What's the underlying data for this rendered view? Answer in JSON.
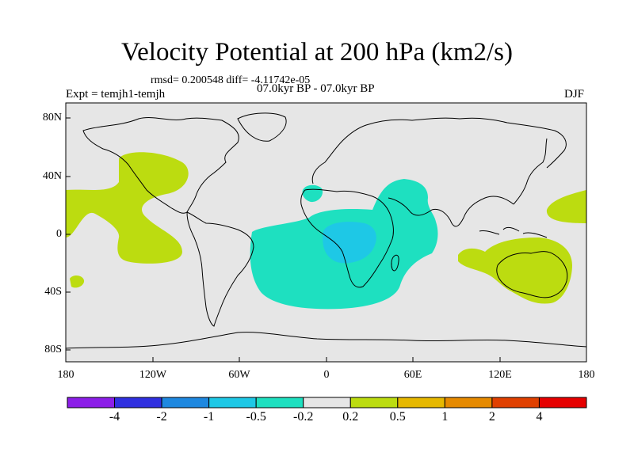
{
  "title": "Velocity Potential at 200 hPa (km2/s)",
  "stats": "rmsd= 0.200548 diff= -4.11742e-05",
  "expt": "Expt = temjh1-temjh",
  "period": "07.0kyr BP - 07.0kyr BP",
  "season": "DJF",
  "lat_labels": [
    "80N",
    "40N",
    "0",
    "40S",
    "80S"
  ],
  "lon_labels": [
    "180",
    "120W",
    "60W",
    "0",
    "60E",
    "120E",
    "180"
  ],
  "colorbar": {
    "colors": [
      "#8c1ee8",
      "#3030e0",
      "#1e88e0",
      "#1ec8e6",
      "#1ee0c0",
      "#e6e6e6",
      "#bcdc10",
      "#e6b800",
      "#e68a00",
      "#e04000",
      "#e60000"
    ],
    "labels": [
      "-4",
      "-2",
      "-1",
      "-0.5",
      "-0.2",
      "0.2",
      "0.5",
      "1",
      "2",
      "4"
    ]
  },
  "regions": [
    {
      "name": "pacific-east-positive",
      "level": "0.2 to 0.5",
      "color": "#bcdc10"
    },
    {
      "name": "atlantic-africa-negative",
      "level": "-0.5 to -0.2",
      "color": "#1ee0c0"
    },
    {
      "name": "africa-core-negative",
      "level": "-1 to -0.5",
      "color": "#1ec8e6"
    },
    {
      "name": "australia-positive",
      "level": "0.2 to 0.5",
      "color": "#bcdc10"
    }
  ]
}
